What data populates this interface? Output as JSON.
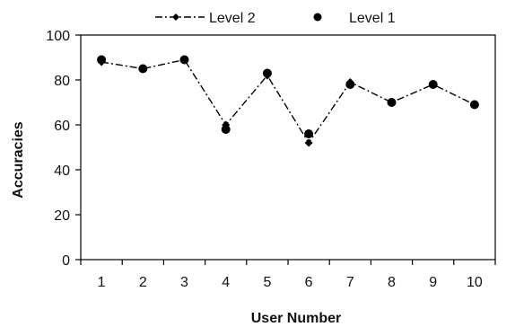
{
  "chart_data": {
    "type": "line",
    "xlabel": "User Number",
    "ylabel": "Accuracies",
    "x": [
      1,
      2,
      3,
      4,
      5,
      6,
      7,
      8,
      9,
      10
    ],
    "xlim": [
      0.5,
      10.5
    ],
    "ylim": [
      0,
      100
    ],
    "yticks": [
      0,
      20,
      40,
      60,
      80,
      100
    ],
    "grid": false,
    "legend_position": "top",
    "series": [
      {
        "name": "Level 2",
        "style": "dash-dot line with diamond markers",
        "color": "#000000",
        "values": [
          88,
          85,
          89,
          60,
          82,
          52,
          79,
          70,
          78,
          69
        ]
      },
      {
        "name": "Level 1",
        "style": "filled circle markers",
        "color": "#000000",
        "values": [
          89,
          85,
          89,
          58,
          83,
          56,
          78,
          70,
          78,
          69
        ]
      }
    ]
  }
}
